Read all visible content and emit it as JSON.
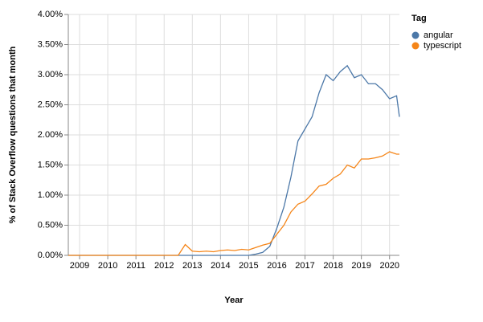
{
  "chart_data": {
    "type": "line",
    "x_label": "Year",
    "y_label": "% of Stack Overflow questions that month",
    "legend_title": "Tag",
    "legend_position": "top-right",
    "grid": true,
    "xlim": [
      2008.6,
      2020.35
    ],
    "xticks": [
      2009,
      2010,
      2011,
      2012,
      2013,
      2014,
      2015,
      2016,
      2017,
      2018,
      2019,
      2020
    ],
    "ylim": [
      0,
      4
    ],
    "yticks": [
      {
        "value": 0,
        "label": "0.00%"
      },
      {
        "value": 0.5,
        "label": "0.50%"
      },
      {
        "value": 1,
        "label": "1.00%"
      },
      {
        "value": 1.5,
        "label": "1.50%"
      },
      {
        "value": 2,
        "label": "2.00%"
      },
      {
        "value": 2.5,
        "label": "2.50%"
      },
      {
        "value": 3,
        "label": "3.00%"
      },
      {
        "value": 3.5,
        "label": "3.50%"
      },
      {
        "value": 4,
        "label": "4.00%"
      }
    ],
    "x": [
      2008.6,
      2009,
      2010,
      2011,
      2012,
      2012.5,
      2012.75,
      2013.0,
      2013.25,
      2013.5,
      2013.75,
      2014.0,
      2014.25,
      2014.5,
      2014.75,
      2015.0,
      2015.25,
      2015.5,
      2015.75,
      2016.0,
      2016.25,
      2016.5,
      2016.75,
      2017.0,
      2017.25,
      2017.5,
      2017.75,
      2018.0,
      2018.25,
      2018.5,
      2018.75,
      2019.0,
      2019.25,
      2019.5,
      2019.75,
      2020.0,
      2020.25,
      2020.35
    ],
    "series": [
      {
        "name": "angular",
        "color": "#4c78a8",
        "values": [
          0,
          0,
          0,
          0,
          0,
          0,
          0,
          0,
          0,
          0,
          0,
          0,
          0,
          0,
          0,
          0,
          0.02,
          0.05,
          0.15,
          0.45,
          0.8,
          1.3,
          1.9,
          2.1,
          2.3,
          2.7,
          3.0,
          2.9,
          3.05,
          3.15,
          2.95,
          3.0,
          2.85,
          2.85,
          2.75,
          2.6,
          2.65,
          2.3
        ]
      },
      {
        "name": "typescript",
        "color": "#f58518",
        "values": [
          0,
          0,
          0,
          0,
          0,
          0,
          0.18,
          0.07,
          0.06,
          0.07,
          0.06,
          0.08,
          0.09,
          0.08,
          0.1,
          0.09,
          0.13,
          0.17,
          0.2,
          0.35,
          0.5,
          0.72,
          0.85,
          0.9,
          1.02,
          1.15,
          1.18,
          1.28,
          1.35,
          1.5,
          1.45,
          1.6,
          1.6,
          1.62,
          1.65,
          1.72,
          1.68,
          1.68
        ]
      }
    ]
  }
}
